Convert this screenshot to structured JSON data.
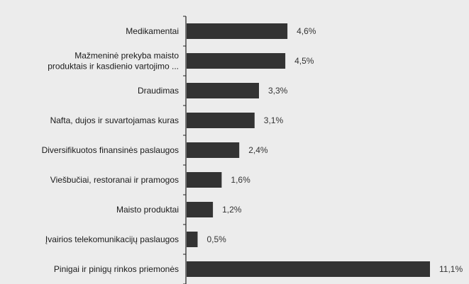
{
  "chart_data": {
    "type": "bar",
    "orientation": "horizontal",
    "categories": [
      [
        "Medikamentai"
      ],
      [
        "Mažmeninė prekyba maisto",
        "produktais ir kasdienio vartojimo ..."
      ],
      [
        "Draudimas"
      ],
      [
        "Nafta, dujos ir suvartojamas kuras"
      ],
      [
        "Diversifikuotos finansinės paslaugos"
      ],
      [
        "Viešbučiai, restoranai ir pramogos"
      ],
      [
        "Maisto produktai"
      ],
      [
        "Įvairios telekomunikacijų paslaugos"
      ],
      [
        "Pinigai ir pinigų rinkos priemonės"
      ]
    ],
    "values": [
      4.6,
      4.5,
      3.3,
      3.1,
      2.4,
      1.6,
      1.2,
      0.5,
      11.1
    ],
    "value_labels": [
      "4,6%",
      "4,5%",
      "3,3%",
      "3,1%",
      "2,4%",
      "1,6%",
      "1,2%",
      "0,5%",
      "11,1%"
    ],
    "xlim": [
      0,
      11.1
    ],
    "grid": false,
    "legend": "none",
    "colors": {
      "background": "#ececec",
      "bar": "#333333",
      "axis": "#222222",
      "text": "#1a1a1a"
    }
  }
}
